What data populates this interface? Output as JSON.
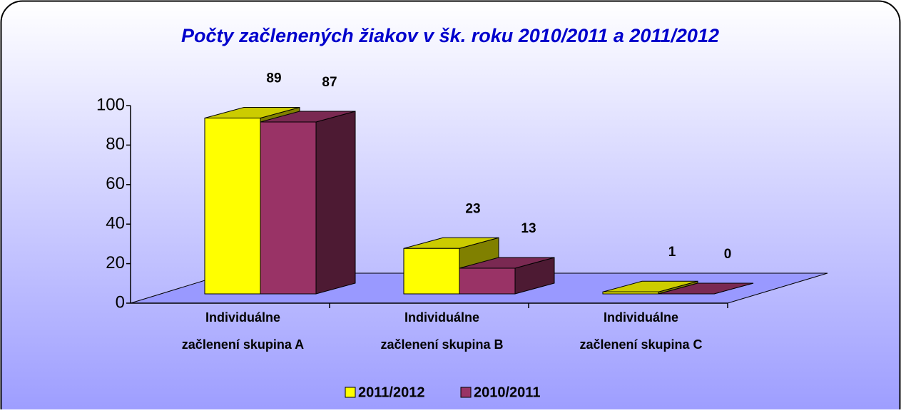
{
  "chart_data": {
    "type": "bar3d",
    "title": "Počty začlenených žiakov v šk. roku 2010/2011 a 2011/2012",
    "categories": [
      "Individuálne začlenení skupina A",
      "Individuálne začlenení skupina B",
      "Individuálne začlenení skupina C"
    ],
    "series": [
      {
        "name": "2011/2012",
        "color": "#ffff00",
        "values": [
          89,
          23,
          1
        ]
      },
      {
        "name": "2010/2011",
        "color": "#993366",
        "values": [
          87,
          13,
          0
        ]
      }
    ],
    "ylim": [
      0,
      100
    ],
    "yticks": [
      0,
      20,
      40,
      60,
      80,
      100
    ],
    "legend": "bottom"
  }
}
